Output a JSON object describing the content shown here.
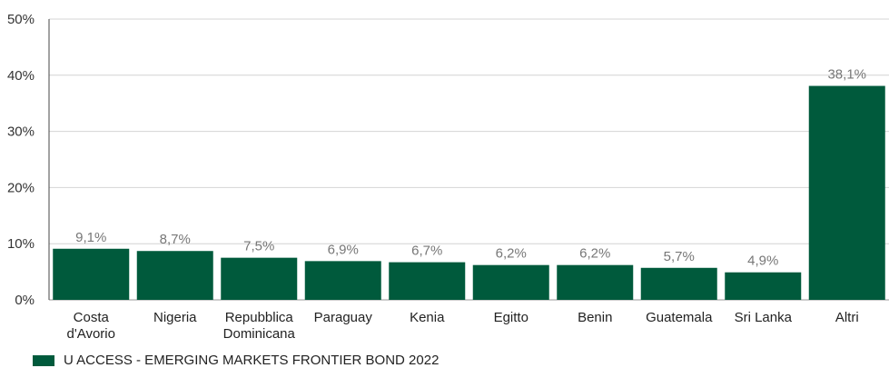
{
  "chart_data": {
    "type": "bar",
    "categories": [
      "Costa d'Avorio",
      "Nigeria",
      "Repubblica Dominicana",
      "Paraguay",
      "Kenia",
      "Egitto",
      "Benin",
      "Guatemala",
      "Sri Lanka",
      "Altri"
    ],
    "category_lines": [
      [
        "Costa",
        "d'Avorio"
      ],
      [
        "Nigeria"
      ],
      [
        "Repubblica",
        "Dominicana"
      ],
      [
        "Paraguay"
      ],
      [
        "Kenia"
      ],
      [
        "Egitto"
      ],
      [
        "Benin"
      ],
      [
        "Guatemala"
      ],
      [
        "Sri Lanka"
      ],
      [
        "Altri"
      ]
    ],
    "series": [
      {
        "name": "U ACCESS - EMERGING MARKETS FRONTIER BOND 2022",
        "values": [
          9.1,
          8.7,
          7.5,
          6.9,
          6.7,
          6.2,
          6.2,
          5.7,
          4.9,
          38.1
        ],
        "color": "#005a3c"
      }
    ],
    "data_labels": [
      "9,1%",
      "8,7%",
      "7,5%",
      "6,9%",
      "6,7%",
      "6,2%",
      "6,2%",
      "5,7%",
      "4,9%",
      "38,1%"
    ],
    "y_ticks": [
      0,
      10,
      20,
      30,
      40,
      50
    ],
    "y_tick_labels": [
      "0%",
      "10%",
      "20%",
      "30%",
      "40%",
      "50%"
    ],
    "ylim": [
      0,
      50
    ],
    "grid": true,
    "legend_position": "bottom-left",
    "title": "",
    "xlabel": "",
    "ylabel": ""
  }
}
